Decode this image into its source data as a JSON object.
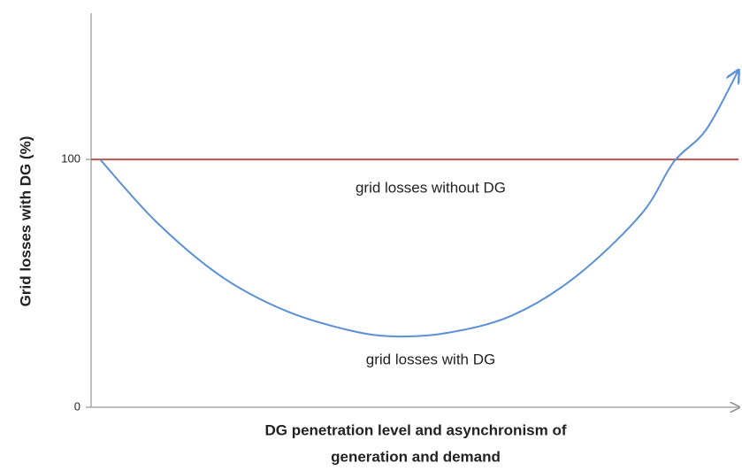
{
  "chart_data": {
    "type": "line",
    "ylabel": "Grid losses with DG  (%)",
    "xlabel": [
      "DG penetration level and asynchronism of",
      "generation and demand"
    ],
    "annotations": [
      "grid losses without DG",
      "grid losses with DG"
    ],
    "xlim": [
      0,
      100
    ],
    "ylim": [
      0,
      159
    ],
    "yticks": [
      0,
      100
    ],
    "series": [
      {
        "name": "grid losses without DG",
        "color": "#c0504d",
        "x": [
          0,
          100
        ],
        "values": [
          100,
          100
        ]
      },
      {
        "name": "grid losses with DG",
        "color": "#5b8fd8",
        "x": [
          1.4,
          10,
          20,
          30,
          40,
          47,
          55,
          65,
          75,
          85,
          90,
          95,
          100
        ],
        "values": [
          100,
          75,
          53,
          39,
          31,
          28.6,
          30,
          37,
          53,
          78,
          99,
          112,
          136
        ]
      }
    ]
  }
}
